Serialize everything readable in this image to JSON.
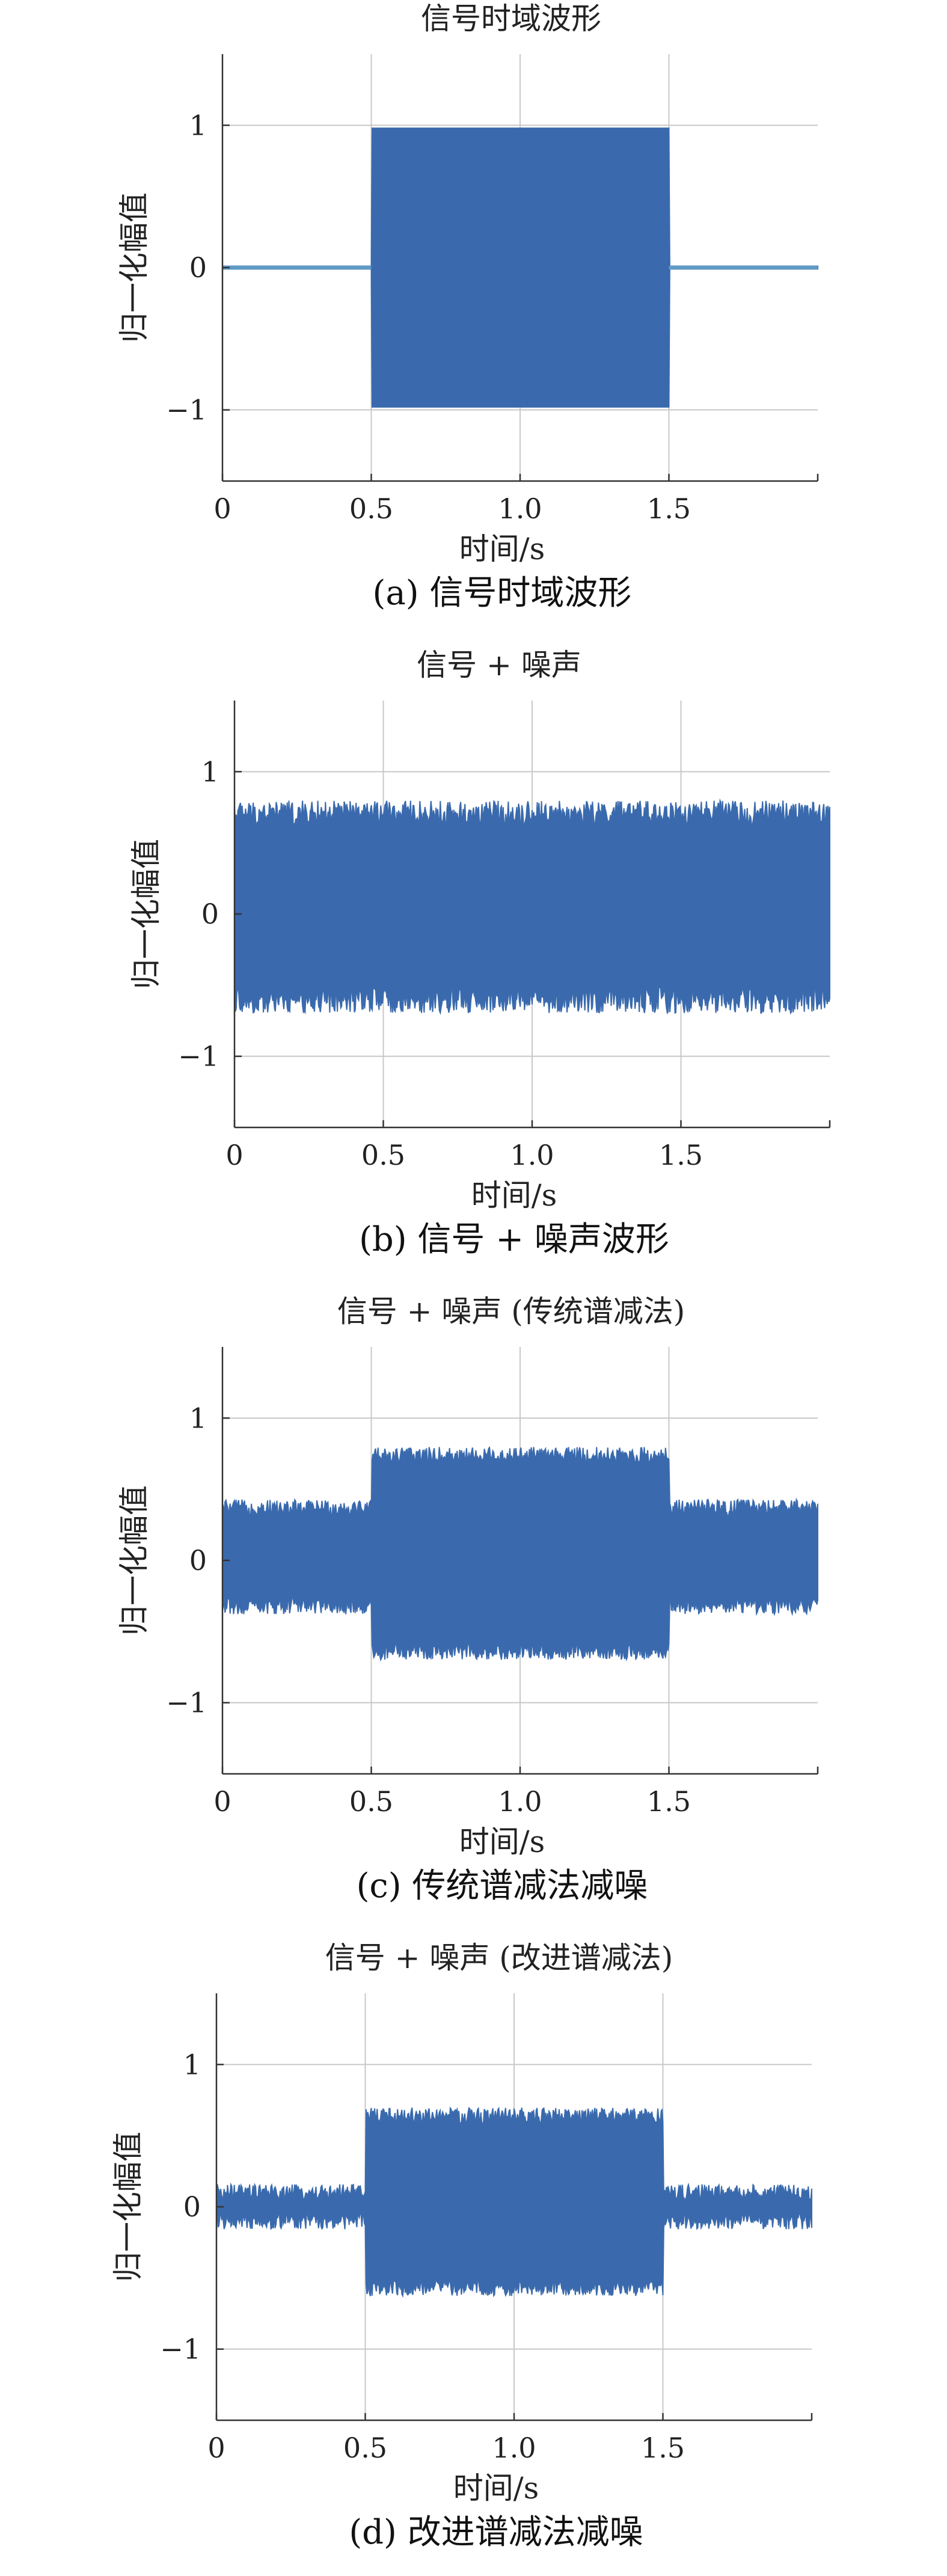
{
  "chart_data": [
    {
      "id": "a",
      "type": "line",
      "title": "信号时域波形",
      "caption": "(a) 信号时域波形",
      "xlabel": "时间/s",
      "ylabel": "归一化幅值",
      "xlim": [
        0,
        2
      ],
      "ylim": [
        -1.5,
        1.5
      ],
      "xticks": [
        0,
        0.5,
        1.0,
        1.5
      ],
      "xtick_labels": [
        "0",
        "0.5",
        "1.0",
        "1.5"
      ],
      "yticks": [
        1,
        0,
        -1
      ],
      "ytick_labels": [
        "1",
        "0",
        "−1"
      ],
      "grid": true,
      "series": [
        {
          "x": [
            0,
            0.5,
            0.5,
            1.5,
            1.5,
            2.0
          ],
          "upper": [
            0.01,
            0.01,
            0.98,
            0.98,
            0.01,
            0.01
          ],
          "lower": [
            -0.01,
            -0.01,
            -0.98,
            -0.98,
            -0.01,
            -0.01
          ]
        }
      ]
    },
    {
      "id": "b",
      "type": "line",
      "title": "信号 + 噪声",
      "caption": "(b) 信号 + 噪声波形",
      "xlabel": "时间/s",
      "ylabel": "归一化幅值",
      "xlim": [
        0,
        2
      ],
      "ylim": [
        -1.5,
        1.5
      ],
      "xticks": [
        0,
        0.5,
        1.0,
        1.5
      ],
      "xtick_labels": [
        "0",
        "0.5",
        "1.0",
        "1.5"
      ],
      "yticks": [
        1,
        0,
        -1
      ],
      "ytick_labels": [
        "1",
        "0",
        "−1"
      ],
      "grid": true,
      "series": [
        {
          "x": [
            0,
            2.0
          ],
          "upper": [
            0.68,
            0.68
          ],
          "lower": [
            -0.58,
            -0.58
          ],
          "noise": 0.18
        }
      ]
    },
    {
      "id": "c",
      "type": "line",
      "title": "信号 + 噪声 (传统谱减法)",
      "caption": "(c) 传统谱减法减噪",
      "xlabel": "时间/s",
      "ylabel": "归一化幅值",
      "xlim": [
        0,
        2
      ],
      "ylim": [
        -1.5,
        1.5
      ],
      "xticks": [
        0,
        0.5,
        1.0,
        1.5
      ],
      "xtick_labels": [
        "0",
        "0.5",
        "1.0",
        "1.5"
      ],
      "yticks": [
        1,
        0,
        -1
      ],
      "ytick_labels": [
        "1",
        "0",
        "−1"
      ],
      "grid": true,
      "series": [
        {
          "x": [
            0,
            0.5,
            0.5,
            1.5,
            1.5,
            2.0
          ],
          "upper": [
            0.35,
            0.35,
            0.72,
            0.72,
            0.35,
            0.35
          ],
          "lower": [
            -0.3,
            -0.3,
            -0.62,
            -0.62,
            -0.3,
            -0.3
          ],
          "noise": 0.12
        }
      ]
    },
    {
      "id": "d",
      "type": "line",
      "title": "信号 + 噪声 (改进谱减法)",
      "caption": "(d) 改进谱减法减噪",
      "xlabel": "时间/s",
      "ylabel": "归一化幅值",
      "xlim": [
        0,
        2
      ],
      "ylim": [
        -1.5,
        1.5
      ],
      "xticks": [
        0,
        0.5,
        1.0,
        1.5
      ],
      "xtick_labels": [
        "0",
        "0.5",
        "1.0",
        "1.5"
      ],
      "yticks": [
        1,
        0,
        -1
      ],
      "ytick_labels": [
        "1",
        "0",
        "−1"
      ],
      "grid": true,
      "series": [
        {
          "x": [
            0,
            0.5,
            0.5,
            1.5,
            1.5,
            2.0
          ],
          "upper": [
            0.08,
            0.08,
            0.62,
            0.62,
            0.08,
            0.08
          ],
          "lower": [
            -0.08,
            -0.08,
            -0.55,
            -0.55,
            -0.08,
            -0.08
          ],
          "noise": 0.12
        }
      ]
    }
  ]
}
